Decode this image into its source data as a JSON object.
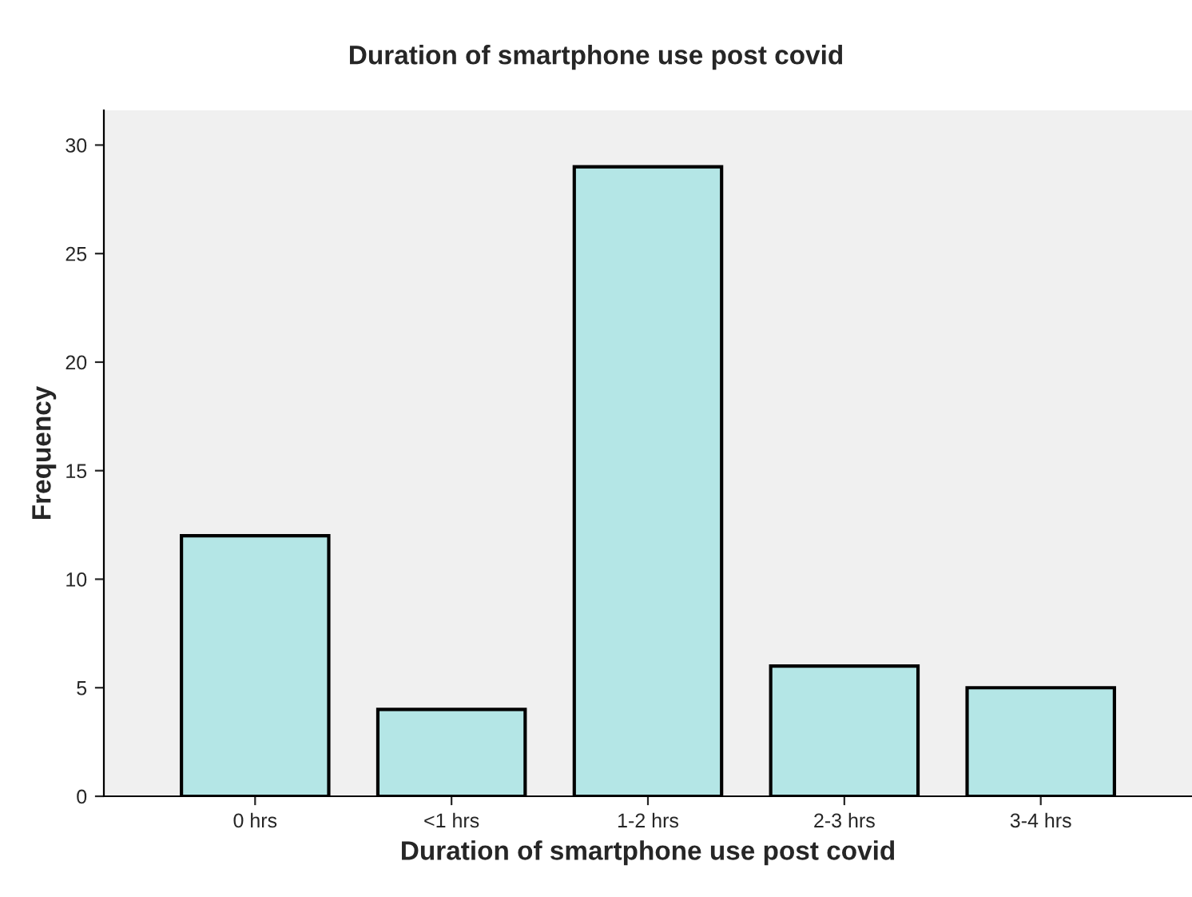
{
  "chart_data": {
    "type": "bar",
    "title": "Duration of smartphone use post covid",
    "xlabel": "Duration of smartphone use post covid",
    "ylabel": "Frequency",
    "categories": [
      "0 hrs",
      "<1 hrs",
      "1-2 hrs",
      "2-3 hrs",
      "3-4 hrs"
    ],
    "values": [
      12,
      4,
      29,
      6,
      5
    ],
    "color": "#b4e6e6",
    "ylim": [
      0,
      31.6
    ],
    "yticks": [
      0,
      5,
      10,
      15,
      20,
      25,
      30
    ],
    "grid": false,
    "legend": false
  }
}
